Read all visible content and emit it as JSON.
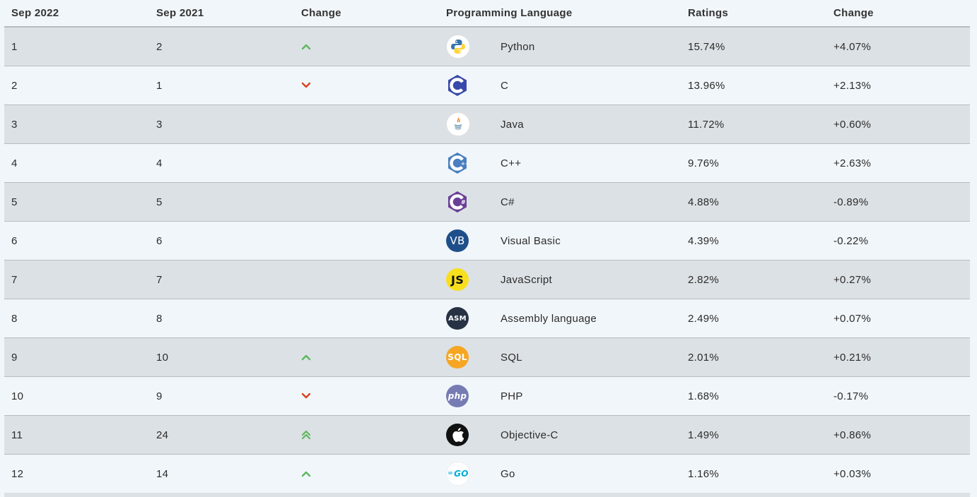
{
  "headers": {
    "sep2022": "Sep 2022",
    "sep2021": "Sep 2021",
    "change": "Change",
    "language": "Programming Language",
    "ratings": "Ratings",
    "change_pct": "Change"
  },
  "colors": {
    "up": "#5cb85c",
    "down": "#d9411e"
  },
  "rows": [
    {
      "rank": "1",
      "prev": "2",
      "trend": "up",
      "logo": "python-logo-icon",
      "language": "Python",
      "rating": "15.74%",
      "change": "+4.07%"
    },
    {
      "rank": "2",
      "prev": "1",
      "trend": "down",
      "logo": "c-logo-icon",
      "language": "C",
      "rating": "13.96%",
      "change": "+2.13%"
    },
    {
      "rank": "3",
      "prev": "3",
      "trend": "none",
      "logo": "java-logo-icon",
      "language": "Java",
      "rating": "11.72%",
      "change": "+0.60%"
    },
    {
      "rank": "4",
      "prev": "4",
      "trend": "none",
      "logo": "cpp-logo-icon",
      "language": "C++",
      "rating": "9.76%",
      "change": "+2.63%"
    },
    {
      "rank": "5",
      "prev": "5",
      "trend": "none",
      "logo": "csharp-logo-icon",
      "language": "C#",
      "rating": "4.88%",
      "change": "-0.89%"
    },
    {
      "rank": "6",
      "prev": "6",
      "trend": "none",
      "logo": "visual-basic-logo-icon",
      "language": "Visual Basic",
      "rating": "4.39%",
      "change": "-0.22%"
    },
    {
      "rank": "7",
      "prev": "7",
      "trend": "none",
      "logo": "javascript-logo-icon",
      "language": "JavaScript",
      "rating": "2.82%",
      "change": "+0.27%"
    },
    {
      "rank": "8",
      "prev": "8",
      "trend": "none",
      "logo": "assembly-logo-icon",
      "language": "Assembly language",
      "rating": "2.49%",
      "change": "+0.07%"
    },
    {
      "rank": "9",
      "prev": "10",
      "trend": "up",
      "logo": "sql-logo-icon",
      "language": "SQL",
      "rating": "2.01%",
      "change": "+0.21%"
    },
    {
      "rank": "10",
      "prev": "9",
      "trend": "down",
      "logo": "php-logo-icon",
      "language": "PHP",
      "rating": "1.68%",
      "change": "-0.17%"
    },
    {
      "rank": "11",
      "prev": "24",
      "trend": "double-up",
      "logo": "objective-c-logo-icon",
      "language": "Objective-C",
      "rating": "1.49%",
      "change": "+0.86%"
    },
    {
      "rank": "12",
      "prev": "14",
      "trend": "up",
      "logo": "go-logo-icon",
      "language": "Go",
      "rating": "1.16%",
      "change": "+0.03%"
    }
  ],
  "logo_text": {
    "vb": "VB",
    "js": "JS",
    "asm": "ASM",
    "sql": "SQL",
    "php": "php",
    "go": "GO"
  }
}
